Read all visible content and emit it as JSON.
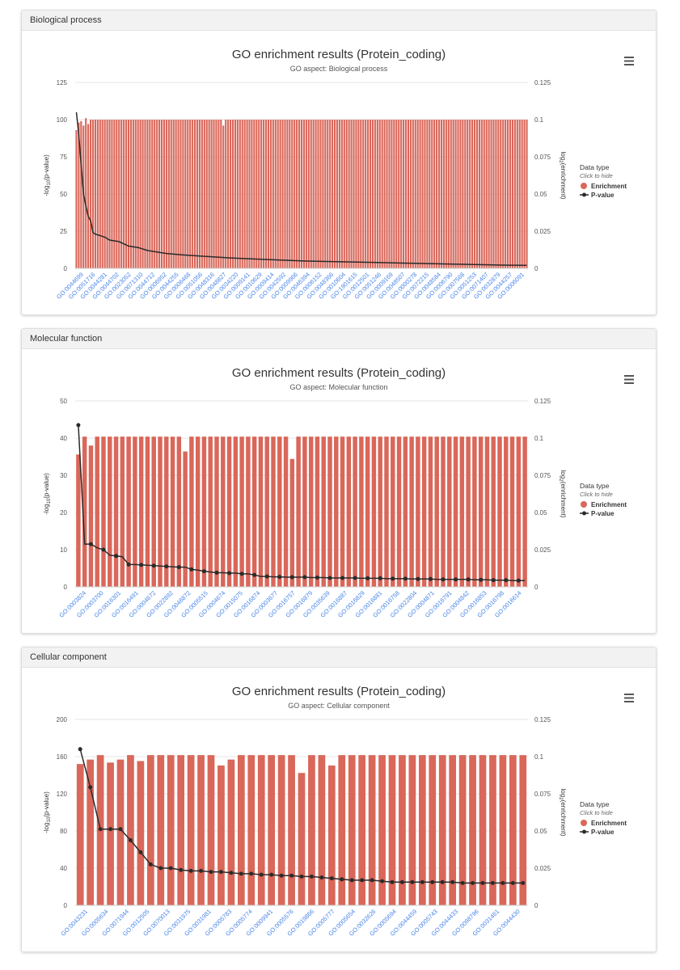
{
  "panels": [
    {
      "header": "Biological process",
      "menu_icon": "hamburger-menu-icon",
      "chart_data": {
        "type": "bar+line",
        "title": "GO enrichment results (Protein_coding)",
        "subtitle": "GO aspect: Biological process",
        "ylabel_left": "-log10(p-value)",
        "ylabel_right": "log2(enrichment)",
        "ylim_left": [
          0,
          125
        ],
        "ylim_right": [
          0,
          0.125
        ],
        "left_ticks": [
          "0",
          "25",
          "50",
          "75",
          "100",
          "125"
        ],
        "right_ticks": [
          "0",
          "0.025",
          "0.05",
          "0.075",
          "0.1",
          "0.125"
        ],
        "x_labels": [
          "GO:0044699",
          "GO:0051716",
          "GO:0044281",
          "GO:0044702",
          "GO:0023052",
          "GO:0071310",
          "GO:0044712",
          "GO:0006952",
          "GO:0044255",
          "GO:0006468",
          "GO:0051056",
          "GO:0048316",
          "GO:0048827",
          "GO:0034220",
          "GO:0009141",
          "GO:0010629",
          "GO:0009414",
          "GO:0042592",
          "GO:0009966",
          "GO:0046394",
          "GO:0006152",
          "GO:0048366",
          "GO:0010604",
          "GO:1901615",
          "GO:0012501",
          "GO:0051246",
          "GO:0009169",
          "GO:0048507",
          "GO:0000278",
          "GO:0072215",
          "GO:0048584",
          "GO:0006790",
          "GO:0007568",
          "GO:0051253",
          "GO:0071407",
          "GO:0032879",
          "GO:0044257",
          "GO:0006091"
        ],
        "bar_count": 191,
        "bar_default": 0.1,
        "bar_values": [
          0.093,
          0.098,
          0.099,
          0.096,
          0.101,
          0.097,
          0.1,
          0.1,
          0.1,
          0.1,
          0.1,
          0.1,
          0.1,
          0.1,
          0.1,
          0.1,
          0.1,
          0.1,
          0.1,
          0.1,
          0.1,
          0.1,
          0.1,
          0.1,
          0.1,
          0.1,
          0.1,
          0.1,
          0.1,
          0.1,
          0.1,
          0.1,
          0.1,
          0.1,
          0.1,
          0.1,
          0.1,
          0.1,
          0.1,
          0.1,
          0.1,
          0.1,
          0.1,
          0.1,
          0.1,
          0.1,
          0.1,
          0.1,
          0.1,
          0.1,
          0.1,
          0.1,
          0.1,
          0.1,
          0.1,
          0.1,
          0.1,
          0.1,
          0.1,
          0.1,
          0.1,
          0.1,
          0.096,
          0.1,
          0.1,
          0.1,
          0.1,
          0.1,
          0.1,
          0.1
        ],
        "pvalue_curve": [
          [
            0,
            105
          ],
          [
            1,
            90
          ],
          [
            2,
            70
          ],
          [
            3,
            50
          ],
          [
            4,
            42
          ],
          [
            5,
            35
          ],
          [
            6,
            32
          ],
          [
            7,
            24
          ],
          [
            8,
            23
          ],
          [
            10,
            22
          ],
          [
            12,
            21
          ],
          [
            14,
            19
          ],
          [
            18,
            18
          ],
          [
            22,
            15
          ],
          [
            26,
            14
          ],
          [
            30,
            12
          ],
          [
            34,
            11
          ],
          [
            38,
            10
          ],
          [
            45,
            9
          ],
          [
            55,
            8
          ],
          [
            65,
            7
          ],
          [
            80,
            6
          ],
          [
            95,
            5
          ],
          [
            110,
            4.5
          ],
          [
            125,
            4
          ],
          [
            140,
            3.5
          ],
          [
            155,
            3
          ],
          [
            170,
            2.5
          ],
          [
            180,
            2.2
          ],
          [
            190,
            2
          ]
        ]
      },
      "legend": {
        "title": "Data type",
        "subtitle": "Click to hide",
        "enrichment": "Enrichment",
        "pvalue": "P-value"
      }
    },
    {
      "header": "Molecular function",
      "menu_icon": "hamburger-menu-icon",
      "chart_data": {
        "type": "bar+line",
        "title": "GO enrichment results (Protein_coding)",
        "subtitle": "GO aspect: Molecular function",
        "ylabel_left": "-log10(p-value)",
        "ylabel_right": "log2(enrichment)",
        "ylim_left": [
          0,
          50
        ],
        "ylim_right": [
          0,
          0.125
        ],
        "left_ticks": [
          "0",
          "10",
          "20",
          "30",
          "40",
          "50"
        ],
        "right_ticks": [
          "0",
          "0.025",
          "0.05",
          "0.075",
          "0.1",
          "0.125"
        ],
        "x_labels": [
          "GO:0003824",
          "GO:0003700",
          "GO:0016301",
          "GO:0016491",
          "GO:0004672",
          "GO:0022892",
          "GO:0046872",
          "GO:0005515",
          "GO:0004674",
          "GO:0015075",
          "GO:0016874",
          "GO:0003677",
          "GO:0016757",
          "GO:0016879",
          "GO:0035639",
          "GO:0016887",
          "GO:0016829",
          "GO:0016881",
          "GO:0016758",
          "GO:0022804",
          "GO:0004871",
          "GO:0016791",
          "GO:0004842",
          "GO:0016853",
          "GO:0016798",
          "GO:0016614"
        ],
        "bar_values": [
          0.089,
          0.101,
          0.095,
          0.101,
          0.101,
          0.101,
          0.101,
          0.101,
          0.101,
          0.101,
          0.101,
          0.101,
          0.101,
          0.101,
          0.101,
          0.101,
          0.101,
          0.091,
          0.101,
          0.101,
          0.101,
          0.101,
          0.101,
          0.101,
          0.101,
          0.101,
          0.101,
          0.101,
          0.101,
          0.101,
          0.101,
          0.101,
          0.101,
          0.101,
          0.086,
          0.101,
          0.101,
          0.101,
          0.101,
          0.101,
          0.101,
          0.101,
          0.101,
          0.101,
          0.101,
          0.101,
          0.101,
          0.101,
          0.101,
          0.101,
          0.101,
          0.101,
          0.101,
          0.101,
          0.101,
          0.101,
          0.101,
          0.101,
          0.101,
          0.101,
          0.101,
          0.101,
          0.101,
          0.101,
          0.101,
          0.101,
          0.101,
          0.101,
          0.101,
          0.101,
          0.101,
          0.101
        ],
        "pvalue_values": [
          43.5,
          11.5,
          11.5,
          10.5,
          10,
          8.5,
          8.3,
          8.1,
          6,
          6,
          5.9,
          5.8,
          5.7,
          5.6,
          5.5,
          5.4,
          5.3,
          5.3,
          4.7,
          4.5,
          4.2,
          4,
          3.8,
          3.8,
          3.7,
          3.7,
          3.5,
          3.5,
          3.2,
          2.8,
          2.8,
          2.7,
          2.7,
          2.6,
          2.6,
          2.6,
          2.6,
          2.5,
          2.5,
          2.5,
          2.4,
          2.4,
          2.4,
          2.4,
          2.4,
          2.3,
          2.3,
          2.3,
          2.3,
          2.2,
          2.2,
          2.2,
          2.2,
          2.1,
          2.1,
          2.1,
          2.1,
          2,
          2,
          2,
          2,
          2,
          2,
          1.9,
          1.9,
          1.9,
          1.8,
          1.8,
          1.8,
          1.7,
          1.7,
          1.7
        ],
        "marker_every": 2
      },
      "legend": {
        "title": "Data type",
        "subtitle": "Click to hide",
        "enrichment": "Enrichment",
        "pvalue": "P-value"
      }
    },
    {
      "header": "Cellular component",
      "menu_icon": "hamburger-menu-icon",
      "chart_data": {
        "type": "bar+line",
        "title": "GO enrichment results (Protein_coding)",
        "subtitle": "GO aspect: Cellular component",
        "ylabel_left": "-log10(p-value)",
        "ylabel_right": "log2(enrichment)",
        "ylim_left": [
          0,
          200
        ],
        "ylim_right": [
          0,
          0.125
        ],
        "left_ticks": [
          "0",
          "40",
          "80",
          "120",
          "160",
          "200"
        ],
        "right_ticks": [
          "0",
          "0.025",
          "0.05",
          "0.075",
          "0.1",
          "0.125"
        ],
        "x_labels": [
          "GO:0043231",
          "GO:0005634",
          "GO:0071944",
          "GO:0012505",
          "GO:0070013",
          "GO:0031975",
          "GO:0031981",
          "GO:0005783",
          "GO:0005774",
          "GO:0009941",
          "GO:0005576",
          "GO:0019866",
          "GO:0005777",
          "GO:0005654",
          "GO:0032626",
          "GO:0005694",
          "GO:0044459",
          "GO:0005743",
          "GO:0044433",
          "GO:0098796",
          "GO:0031461",
          "GO:0044430"
        ],
        "bar_values": [
          0.095,
          0.098,
          0.101,
          0.096,
          0.098,
          0.101,
          0.097,
          0.101,
          0.101,
          0.101,
          0.101,
          0.101,
          0.101,
          0.101,
          0.094,
          0.098,
          0.101,
          0.101,
          0.101,
          0.101,
          0.101,
          0.101,
          0.089,
          0.101,
          0.101,
          0.094,
          0.101,
          0.101,
          0.101,
          0.101,
          0.101,
          0.101,
          0.101,
          0.101,
          0.101,
          0.101,
          0.101,
          0.101,
          0.101,
          0.101,
          0.101,
          0.101,
          0.101,
          0.101,
          0.101
        ],
        "pvalue_values": [
          168,
          127,
          82,
          82,
          82,
          70,
          57,
          44,
          40,
          40,
          38,
          37,
          37,
          36,
          36,
          35,
          34,
          34,
          33,
          33,
          32,
          32,
          31,
          31,
          30,
          29,
          28,
          27,
          27,
          27,
          26,
          25,
          25,
          25,
          25,
          25,
          25,
          25,
          24,
          24,
          24,
          24,
          24,
          24,
          24
        ],
        "marker_every": 1
      },
      "legend": {
        "title": "Data type",
        "subtitle": "Click to hide",
        "enrichment": "Enrichment",
        "pvalue": "P-value"
      }
    }
  ],
  "colors": {
    "bar": "#d9675a",
    "line": "#2b2b2b",
    "axis_label": "#4a86e8",
    "grid": "#e6e6e6"
  }
}
